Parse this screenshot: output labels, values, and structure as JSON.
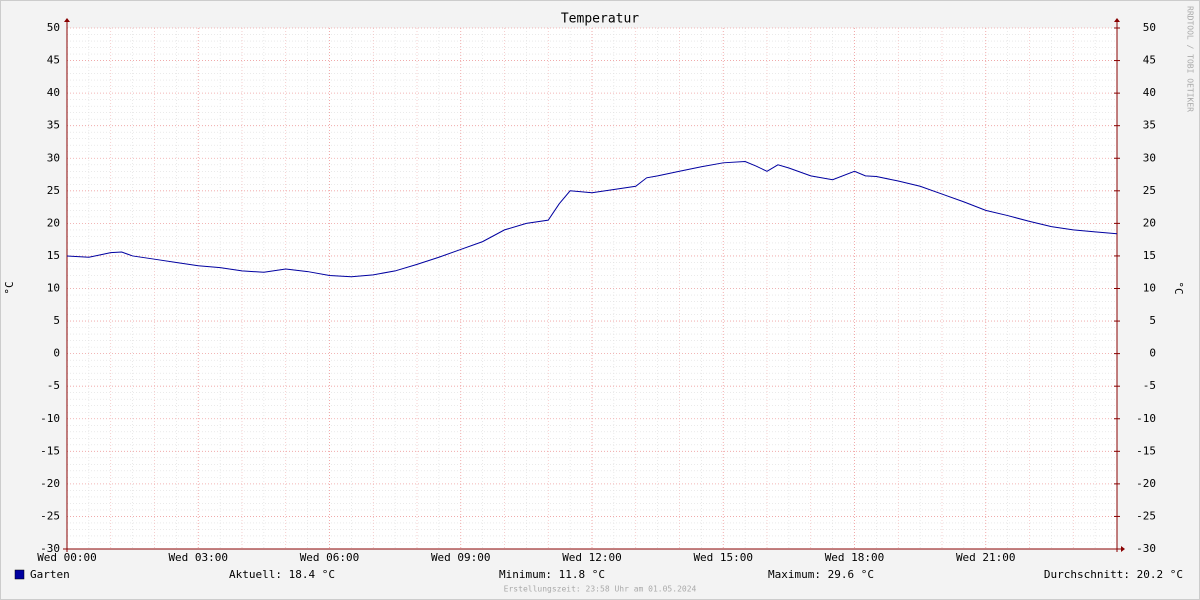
{
  "chart_data": {
    "type": "line",
    "title": "Temperatur",
    "y_label": "°C",
    "y2_label": "°C",
    "x": [
      0,
      0.5,
      1,
      1.25,
      1.5,
      2,
      2.5,
      3,
      3.5,
      4,
      4.5,
      5,
      5.5,
      6,
      6.5,
      7,
      7.5,
      8,
      8.5,
      9,
      9.5,
      10,
      10.5,
      11,
      11.25,
      11.5,
      12,
      12.5,
      13,
      13.25,
      13.5,
      14,
      14.5,
      15,
      15.5,
      15.75,
      16,
      16.25,
      16.5,
      17,
      17.5,
      18,
      18.25,
      18.5,
      19,
      19.5,
      20,
      20.5,
      21,
      21.5,
      22,
      22.5,
      23,
      23.5,
      24
    ],
    "series": [
      {
        "name": "Garten",
        "color": "#0000a0",
        "values": [
          15.0,
          14.8,
          15.5,
          15.6,
          15.0,
          14.5,
          14.0,
          13.5,
          13.2,
          12.7,
          12.5,
          13.0,
          12.6,
          12.0,
          11.8,
          12.1,
          12.7,
          13.7,
          14.8,
          16.0,
          17.2,
          19.0,
          20.0,
          20.5,
          23.0,
          25.0,
          24.7,
          25.2,
          25.7,
          27.0,
          27.3,
          28.0,
          28.7,
          29.3,
          29.5,
          28.8,
          28.0,
          29.0,
          28.5,
          27.3,
          26.7,
          28.0,
          27.3,
          27.2,
          26.5,
          25.7,
          24.5,
          23.3,
          22.0,
          21.2,
          20.3,
          19.5,
          19.0,
          18.7,
          18.4
        ]
      }
    ],
    "xlim": [
      0,
      24
    ],
    "xticks": [
      {
        "value": 0,
        "label": "Wed 00:00"
      },
      {
        "value": 3,
        "label": "Wed 03:00"
      },
      {
        "value": 6,
        "label": "Wed 06:00"
      },
      {
        "value": 9,
        "label": "Wed 09:00"
      },
      {
        "value": 12,
        "label": "Wed 12:00"
      },
      {
        "value": 15,
        "label": "Wed 15:00"
      },
      {
        "value": 18,
        "label": "Wed 18:00"
      },
      {
        "value": 21,
        "label": "Wed 21:00"
      }
    ],
    "ylim": [
      -30,
      50
    ],
    "yticks": [
      -30,
      -25,
      -20,
      -15,
      -10,
      -5,
      0,
      5,
      10,
      15,
      20,
      25,
      30,
      35,
      40,
      45,
      50
    ],
    "y2lim": [
      -30,
      50
    ],
    "y2ticks": [
      -30,
      -25,
      -20,
      -15,
      -10,
      -5,
      0,
      5,
      10,
      15,
      20,
      25,
      30,
      35,
      40,
      45,
      50
    ],
    "grid": true,
    "stats": [
      "Aktuell: 18.4 °C",
      "Minimum: 11.8 °C",
      "Maximum: 29.6 °C",
      "Durchschnitt: 20.2 °C"
    ],
    "footer": "Erstellungszeit: 23:58 Uhr am 01.05.2024",
    "watermark": "RRDTOOL / TOBI OETIKER"
  }
}
